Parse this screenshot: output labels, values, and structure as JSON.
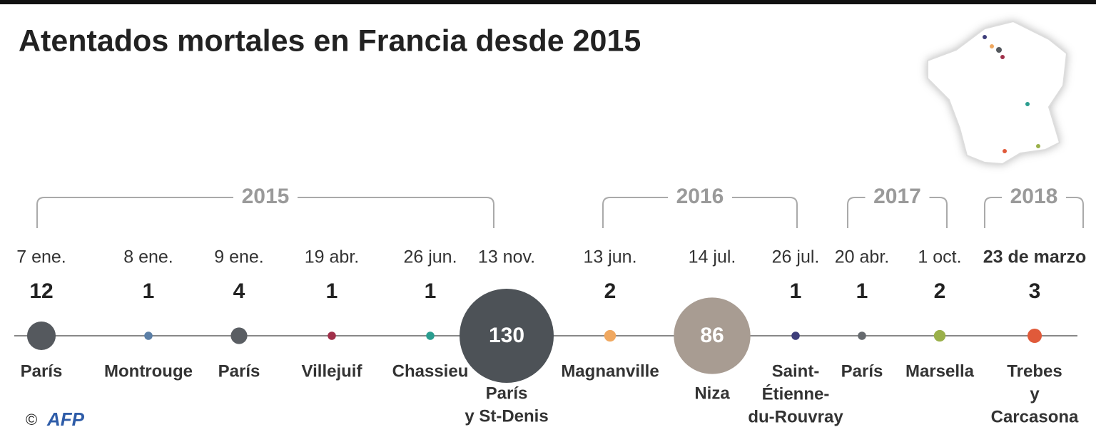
{
  "title": "Atentados mortales en Francia desde 2015",
  "years": [
    {
      "year": "2015",
      "events": [
        {
          "date": "7 ene.",
          "deaths": 12,
          "place": [
            "París"
          ],
          "color": "#55595e"
        },
        {
          "date": "8 ene.",
          "deaths": 1,
          "place": [
            "Montrouge"
          ],
          "color": "#5b7fa6"
        },
        {
          "date": "9 ene.",
          "deaths": 4,
          "place": [
            "París"
          ],
          "color": "#5a5e63"
        },
        {
          "date": "19 abr.",
          "deaths": 1,
          "place": [
            "Villejuif"
          ],
          "color": "#a0304a"
        },
        {
          "date": "26 jun.",
          "deaths": 1,
          "place": [
            "Chassieu"
          ],
          "color": "#2a9d8f"
        },
        {
          "date": "13 nov.",
          "deaths": 130,
          "place": [
            "París",
            "y St-Denis"
          ],
          "color": "#4d5257"
        }
      ]
    },
    {
      "year": "2016",
      "events": [
        {
          "date": "13 jun.",
          "deaths": 2,
          "place": [
            "Magnanville"
          ],
          "color": "#f0a860"
        },
        {
          "date": "14 jul.",
          "deaths": 86,
          "place": [
            "Niza"
          ],
          "color": "#a89c92"
        },
        {
          "date": "26 jul.",
          "deaths": 1,
          "place": [
            "Saint-",
            "Étienne-",
            "du-Rouvray"
          ],
          "color": "#3d3d7a"
        }
      ]
    },
    {
      "year": "2017",
      "events": [
        {
          "date": "20 abr.",
          "deaths": 1,
          "place": [
            "París"
          ],
          "color": "#666a6e"
        },
        {
          "date": "1 oct.",
          "deaths": 2,
          "place": [
            "Marsella"
          ],
          "color": "#9ab04a"
        }
      ]
    },
    {
      "year": "2018",
      "events": [
        {
          "date": "23 de marzo",
          "deaths": 3,
          "place": [
            "Trebes",
            "y",
            "Carcasona"
          ],
          "color": "#e05a3a"
        }
      ]
    }
  ],
  "copyright": "©",
  "logo": "AFP"
}
